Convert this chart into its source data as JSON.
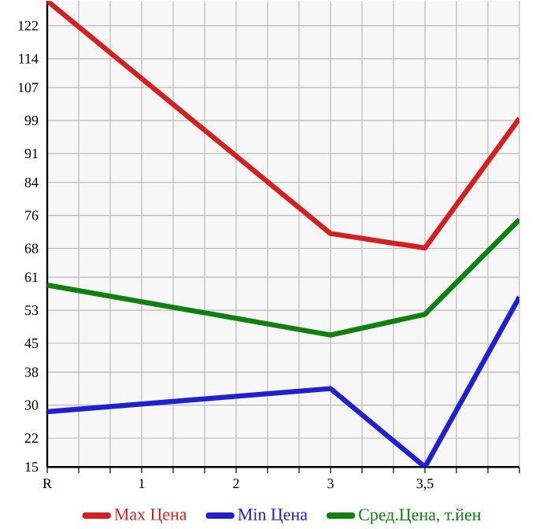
{
  "chart_data": {
    "type": "line",
    "categories": [
      "R",
      "1",
      "2",
      "3",
      "3,5",
      null
    ],
    "ylim": [
      15,
      128
    ],
    "yticks": [
      15,
      22,
      30,
      38,
      45,
      53,
      61,
      68,
      76,
      84,
      91,
      99,
      107,
      114,
      122
    ],
    "grid": true,
    "legend": "bottom",
    "marker": "none",
    "line_style": "solid",
    "series": [
      {
        "name": "Max Цена",
        "color": "#d42020",
        "values": [
          128,
          null,
          null,
          71.6,
          68.1,
          99.5
        ]
      },
      {
        "name": "Min Цена",
        "color": "#2020d0",
        "values": [
          28.4,
          null,
          null,
          34,
          15,
          56.2
        ]
      },
      {
        "name": "Сред.Цена, т.йен",
        "color": "#108010",
        "values": [
          59.1,
          null,
          null,
          47,
          52,
          75
        ]
      }
    ]
  }
}
